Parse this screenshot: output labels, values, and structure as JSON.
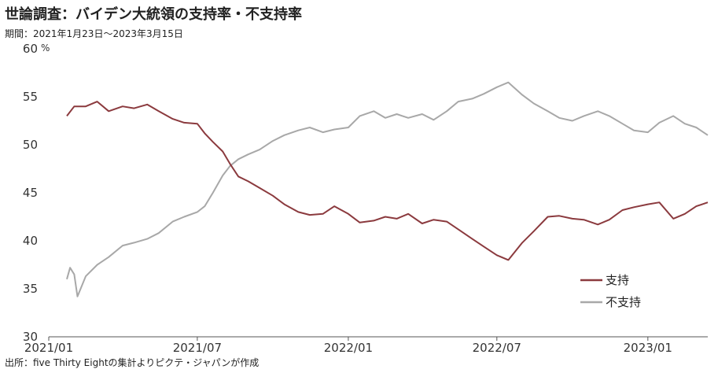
{
  "chart_data": {
    "type": "line",
    "title": "世論調査：バイデン大統領の支持率・不支持率",
    "subtitle": "期間：2021年1月23日～2023年3月15日",
    "source": "出所：five Thirty Eightの集計よりピクテ・ジャパンが作成",
    "y_unit": "%",
    "ylim": [
      30,
      60
    ],
    "yticks": [
      30,
      35,
      40,
      45,
      50,
      55,
      60
    ],
    "xlim": [
      "2021-01-01",
      "2023-03-15"
    ],
    "xticks": [
      {
        "date": "2021-01-01",
        "label": "2021/01"
      },
      {
        "date": "2021-07-01",
        "label": "2021/07"
      },
      {
        "date": "2022-01-01",
        "label": "2022/01"
      },
      {
        "date": "2022-07-01",
        "label": "2022/07"
      },
      {
        "date": "2023-01-01",
        "label": "2023/01"
      }
    ],
    "grid": false,
    "legend_position": "bottom-right",
    "series": [
      {
        "name": "支持",
        "color": "#8b3a3e",
        "points": [
          [
            "2021-01-23",
            53.0
          ],
          [
            "2021-02-01",
            54.0
          ],
          [
            "2021-02-15",
            54.0
          ],
          [
            "2021-03-01",
            54.5
          ],
          [
            "2021-03-15",
            53.5
          ],
          [
            "2021-04-01",
            54.0
          ],
          [
            "2021-04-15",
            53.8
          ],
          [
            "2021-05-01",
            54.2
          ],
          [
            "2021-05-15",
            53.5
          ],
          [
            "2021-06-01",
            52.7
          ],
          [
            "2021-06-15",
            52.3
          ],
          [
            "2021-07-01",
            52.2
          ],
          [
            "2021-07-10",
            51.2
          ],
          [
            "2021-07-20",
            50.3
          ],
          [
            "2021-08-01",
            49.3
          ],
          [
            "2021-08-10",
            48.0
          ],
          [
            "2021-08-20",
            46.7
          ],
          [
            "2021-09-01",
            46.2
          ],
          [
            "2021-09-15",
            45.5
          ],
          [
            "2021-10-01",
            44.7
          ],
          [
            "2021-10-15",
            43.8
          ],
          [
            "2021-11-01",
            43.0
          ],
          [
            "2021-11-15",
            42.7
          ],
          [
            "2021-12-01",
            42.8
          ],
          [
            "2021-12-15",
            43.6
          ],
          [
            "2022-01-01",
            42.8
          ],
          [
            "2022-01-15",
            41.9
          ],
          [
            "2022-02-01",
            42.1
          ],
          [
            "2022-02-15",
            42.5
          ],
          [
            "2022-03-01",
            42.3
          ],
          [
            "2022-03-15",
            42.8
          ],
          [
            "2022-04-01",
            41.8
          ],
          [
            "2022-04-15",
            42.2
          ],
          [
            "2022-05-01",
            42.0
          ],
          [
            "2022-05-15",
            41.2
          ],
          [
            "2022-06-01",
            40.2
          ],
          [
            "2022-06-15",
            39.4
          ],
          [
            "2022-07-01",
            38.5
          ],
          [
            "2022-07-15",
            38.0
          ],
          [
            "2022-08-01",
            39.8
          ],
          [
            "2022-08-15",
            41.0
          ],
          [
            "2022-09-01",
            42.5
          ],
          [
            "2022-09-15",
            42.6
          ],
          [
            "2022-10-01",
            42.3
          ],
          [
            "2022-10-15",
            42.2
          ],
          [
            "2022-11-01",
            41.7
          ],
          [
            "2022-11-15",
            42.2
          ],
          [
            "2022-12-01",
            43.2
          ],
          [
            "2022-12-15",
            43.5
          ],
          [
            "2023-01-01",
            43.8
          ],
          [
            "2023-01-15",
            44.0
          ],
          [
            "2023-02-01",
            42.3
          ],
          [
            "2023-02-15",
            42.8
          ],
          [
            "2023-03-01",
            43.6
          ],
          [
            "2023-03-15",
            44.0
          ]
        ]
      },
      {
        "name": "不支持",
        "color": "#a8a8a8",
        "points": [
          [
            "2021-01-23",
            36.0
          ],
          [
            "2021-01-27",
            37.2
          ],
          [
            "2021-02-01",
            36.5
          ],
          [
            "2021-02-05",
            34.2
          ],
          [
            "2021-02-15",
            36.3
          ],
          [
            "2021-03-01",
            37.5
          ],
          [
            "2021-03-15",
            38.3
          ],
          [
            "2021-04-01",
            39.5
          ],
          [
            "2021-04-15",
            39.8
          ],
          [
            "2021-05-01",
            40.2
          ],
          [
            "2021-05-15",
            40.8
          ],
          [
            "2021-06-01",
            42.0
          ],
          [
            "2021-06-15",
            42.5
          ],
          [
            "2021-07-01",
            43.0
          ],
          [
            "2021-07-10",
            43.6
          ],
          [
            "2021-07-20",
            45.0
          ],
          [
            "2021-08-01",
            46.8
          ],
          [
            "2021-08-10",
            47.8
          ],
          [
            "2021-08-20",
            48.5
          ],
          [
            "2021-09-01",
            49.0
          ],
          [
            "2021-09-15",
            49.5
          ],
          [
            "2021-10-01",
            50.4
          ],
          [
            "2021-10-15",
            51.0
          ],
          [
            "2021-11-01",
            51.5
          ],
          [
            "2021-11-15",
            51.8
          ],
          [
            "2021-12-01",
            51.3
          ],
          [
            "2021-12-15",
            51.6
          ],
          [
            "2022-01-01",
            51.8
          ],
          [
            "2022-01-15",
            53.0
          ],
          [
            "2022-02-01",
            53.5
          ],
          [
            "2022-02-15",
            52.8
          ],
          [
            "2022-03-01",
            53.2
          ],
          [
            "2022-03-15",
            52.8
          ],
          [
            "2022-04-01",
            53.2
          ],
          [
            "2022-04-15",
            52.6
          ],
          [
            "2022-05-01",
            53.5
          ],
          [
            "2022-05-15",
            54.5
          ],
          [
            "2022-06-01",
            54.8
          ],
          [
            "2022-06-15",
            55.3
          ],
          [
            "2022-07-01",
            56.0
          ],
          [
            "2022-07-15",
            56.5
          ],
          [
            "2022-08-01",
            55.2
          ],
          [
            "2022-08-15",
            54.3
          ],
          [
            "2022-09-01",
            53.5
          ],
          [
            "2022-09-15",
            52.8
          ],
          [
            "2022-10-01",
            52.5
          ],
          [
            "2022-10-15",
            53.0
          ],
          [
            "2022-11-01",
            53.5
          ],
          [
            "2022-11-15",
            53.0
          ],
          [
            "2022-12-01",
            52.2
          ],
          [
            "2022-12-15",
            51.5
          ],
          [
            "2023-01-01",
            51.3
          ],
          [
            "2023-01-15",
            52.3
          ],
          [
            "2023-02-01",
            53.0
          ],
          [
            "2023-02-15",
            52.2
          ],
          [
            "2023-03-01",
            51.8
          ],
          [
            "2023-03-15",
            51.0
          ]
        ]
      }
    ]
  }
}
